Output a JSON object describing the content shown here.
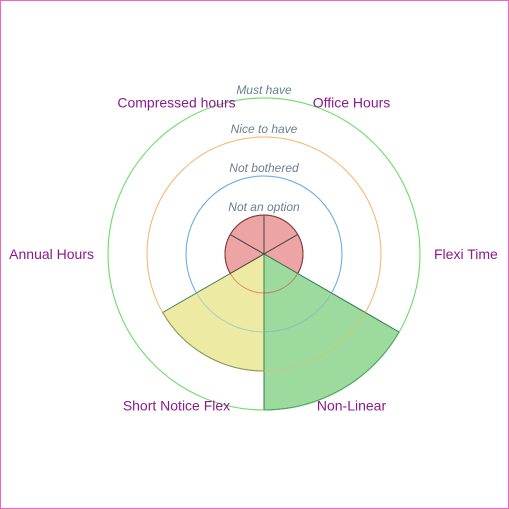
{
  "chart_data": {
    "type": "polar-area",
    "title": "",
    "levels": [
      "Not an option",
      "Not bothered",
      "Nice to have",
      "Must have"
    ],
    "level_colors": [
      "#cc3333",
      "#6aaee0",
      "#f5b870",
      "#66dd66"
    ],
    "categories": [
      "Office Hours",
      "Flexi Time",
      "Non-Linear",
      "Short Notice Flex",
      "Annual Hours",
      "Compressed hours"
    ],
    "values": [
      1,
      1,
      4,
      3,
      1,
      1
    ],
    "value_colors": {
      "1": "#ec9f9f",
      "3": "#ecea9e",
      "4": "#98d898"
    },
    "stroke_colors": {
      "1": "#444444",
      "3": "#3e7e50",
      "4": "#2e7e50"
    }
  }
}
